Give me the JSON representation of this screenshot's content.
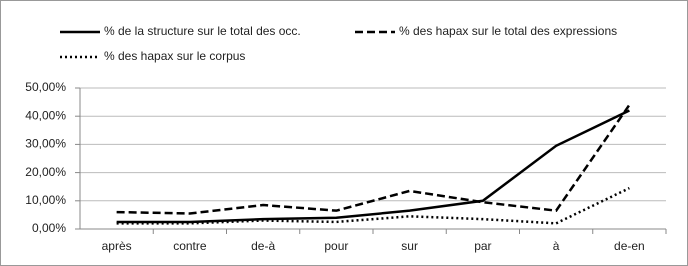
{
  "chart_data": {
    "type": "line",
    "categories": [
      "après",
      "contre",
      "de-à",
      "pour",
      "sur",
      "par",
      "à",
      "de-en"
    ],
    "series": [
      {
        "name": "% de la structure sur le total des occ.",
        "color": "#000000",
        "dash": "solid",
        "values": [
          2.5,
          2.5,
          3.5,
          4,
          6.5,
          10,
          29.5,
          42
        ]
      },
      {
        "name": "% des hapax sur le total des expressions",
        "color": "#000000",
        "dash": "dashed",
        "values": [
          6,
          5.5,
          8.5,
          6.5,
          13.5,
          9.5,
          6.5,
          44
        ]
      },
      {
        "name": "% des hapax sur le corpus",
        "color": "#000000",
        "dash": "dotted",
        "values": [
          2,
          2,
          3,
          2.5,
          4.5,
          3.5,
          2,
          14.5
        ]
      }
    ],
    "ylim": [
      0,
      50
    ],
    "yticks": [
      {
        "value": 0,
        "label": "0,00%"
      },
      {
        "value": 10,
        "label": "10,00%"
      },
      {
        "value": 20,
        "label": "20,00%"
      },
      {
        "value": 30,
        "label": "30,00%"
      },
      {
        "value": 40,
        "label": "40,00%"
      },
      {
        "value": 50,
        "label": "50,00%"
      }
    ],
    "grid": true,
    "legend": "top"
  }
}
